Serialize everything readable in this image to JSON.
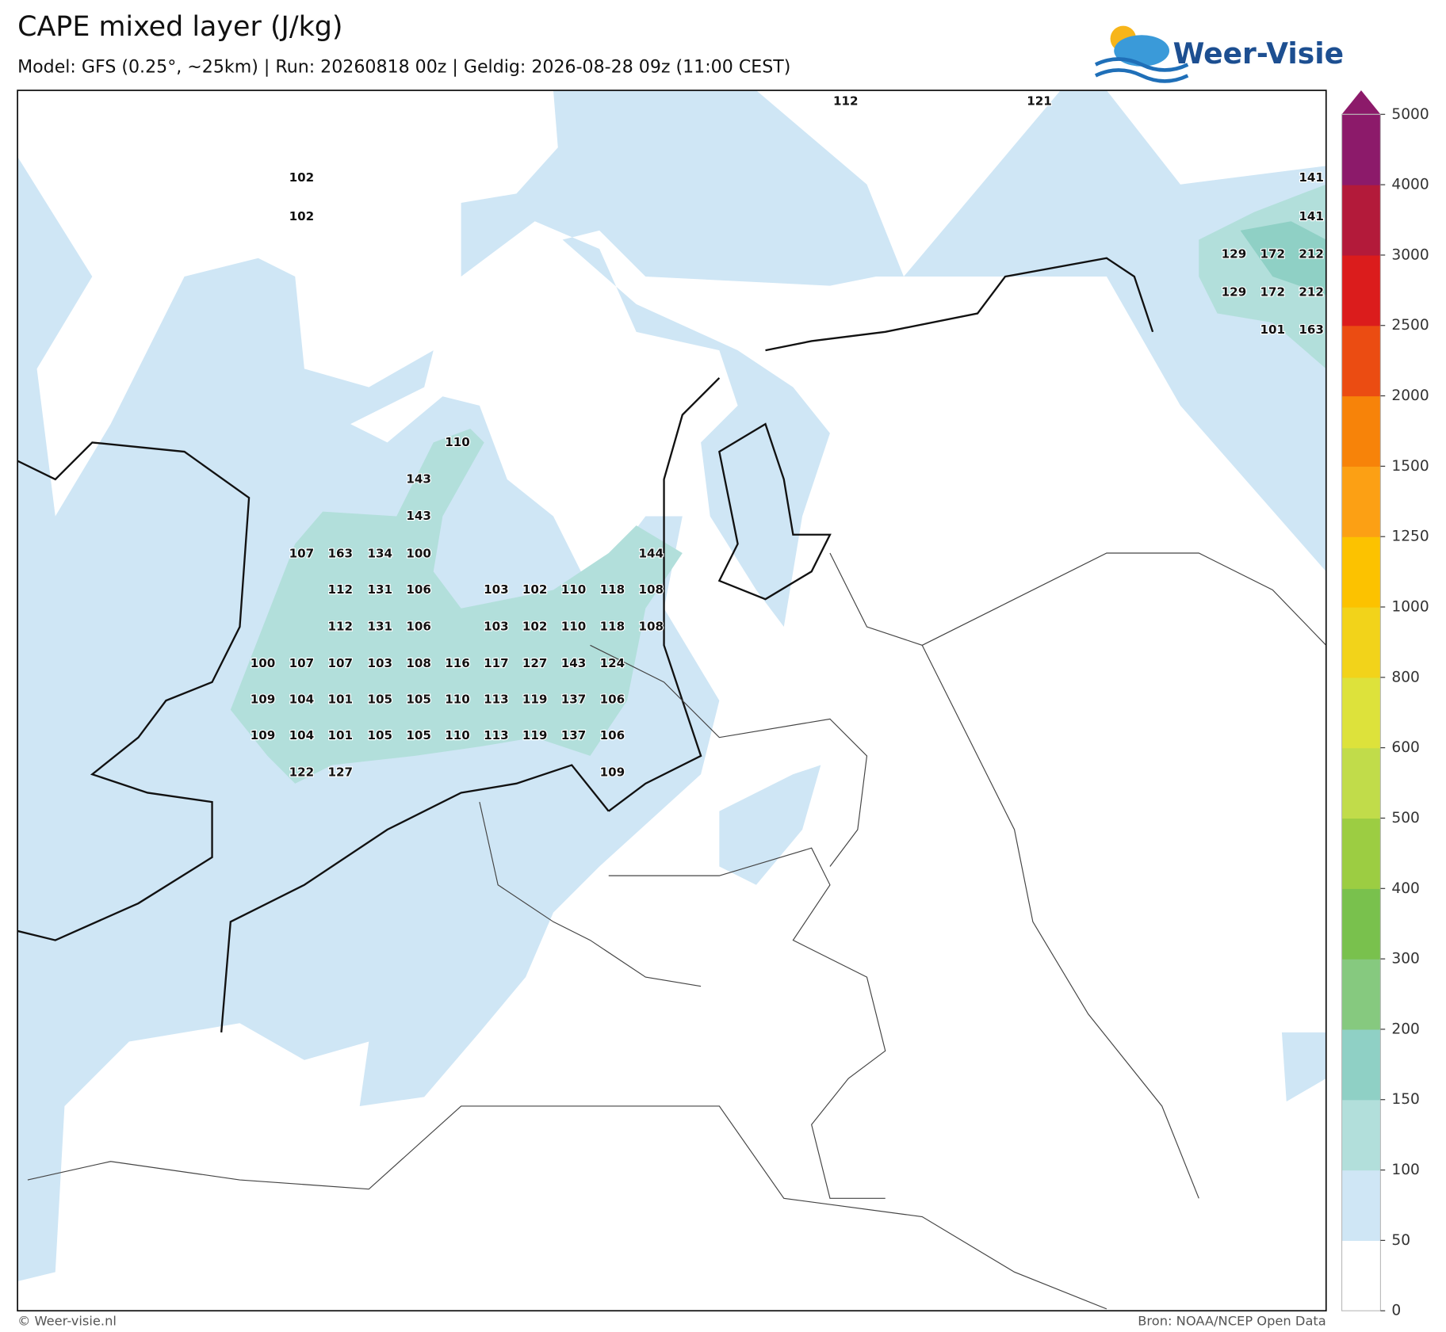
{
  "header": {
    "title": "CAPE mixed layer (J/kg)",
    "subtitle": "Model: GFS (0.25°, ~25km)  |  Run: 20260818 00z  |  Geldig: 2026-08-28 09z (11:00 CEST)",
    "logo": "Weer-Visie"
  },
  "map_labels": [
    112,
    121,
    102,
    102,
    141,
    141,
    129,
    172,
    212,
    129,
    172,
    212,
    101,
    163,
    110,
    143,
    143,
    107,
    163,
    134,
    100,
    144,
    112,
    131,
    106,
    103,
    102,
    110,
    118,
    108,
    112,
    131,
    106,
    103,
    102,
    110,
    118,
    108,
    100,
    107,
    107,
    103,
    108,
    116,
    117,
    127,
    143,
    124,
    109,
    104,
    101,
    105,
    105,
    110,
    113,
    119,
    137,
    106,
    109,
    104,
    101,
    105,
    105,
    110,
    113,
    119,
    137,
    106,
    122,
    127,
    109
  ],
  "colorbar": {
    "ticks": [
      0,
      50,
      100,
      150,
      200,
      300,
      400,
      500,
      600,
      800,
      1000,
      1250,
      1500,
      2000,
      2500,
      3000,
      4000,
      5000
    ],
    "colors": [
      "#ffffff",
      "#cfe6f5",
      "#b2dfdb",
      "#8fd0c5",
      "#86c97f",
      "#79c14d",
      "#9ccd42",
      "#c1dc4a",
      "#dde23b",
      "#f2d31a",
      "#fcc200",
      "#fca014",
      "#f78309",
      "#eb4c12",
      "#db1c1c",
      "#b31a3a",
      "#8c1a6a"
    ],
    "extend_color": "#8c1a6a"
  },
  "footer": {
    "left": "© Weer-visie.nl",
    "right": "Bron: NOAA/NCEP Open Data"
  }
}
